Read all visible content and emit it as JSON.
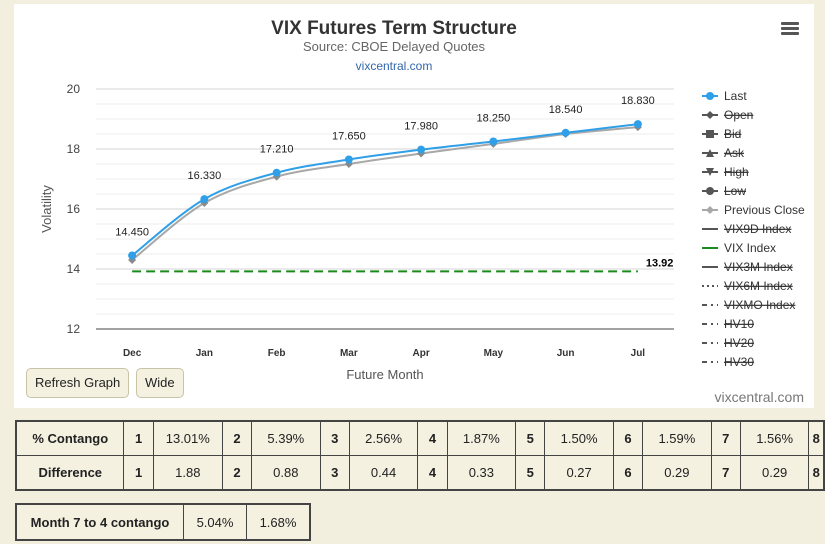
{
  "header": {
    "title": "VIX Futures Term Structure",
    "subtitle": "Source: CBOE Delayed Quotes",
    "site_link": "vixcentral.com"
  },
  "buttons": {
    "refresh": "Refresh Graph",
    "wide": "Wide"
  },
  "watermark": "vixcentral.com",
  "chart_data": {
    "type": "line",
    "categories": [
      "Dec",
      "Jan",
      "Feb",
      "Mar",
      "Apr",
      "May",
      "Jun",
      "Jul"
    ],
    "xlabel": "Future Month",
    "ylabel": "Volatility",
    "ylim": [
      12,
      20
    ],
    "yticks": [
      12,
      14,
      16,
      18,
      20
    ],
    "grid": true,
    "legend_position": "right",
    "series": [
      {
        "name": "Last",
        "values": [
          14.45,
          16.33,
          17.21,
          17.65,
          17.98,
          18.25,
          18.54,
          18.83
        ],
        "color": "#2f9fe8",
        "labels": [
          "14.450",
          "16.330",
          "17.210",
          "17.650",
          "17.980",
          "18.250",
          "18.540",
          "18.830"
        ]
      },
      {
        "name": "Previous Close",
        "values": [
          14.3,
          16.2,
          17.08,
          17.5,
          17.85,
          18.17,
          18.5,
          18.73
        ],
        "color": "#a8a8a8"
      },
      {
        "name": "VIX Index",
        "value": 13.92,
        "label": "13.92",
        "color": "#1a8a1a"
      }
    ],
    "legend": [
      {
        "name": "Last",
        "active": true,
        "marker": "dot",
        "color": "#2f9fe8"
      },
      {
        "name": "Open",
        "active": false,
        "marker": "diamond",
        "color": "#666666"
      },
      {
        "name": "Bid",
        "active": false,
        "marker": "square",
        "color": "#666666"
      },
      {
        "name": "Ask",
        "active": false,
        "marker": "triangle",
        "color": "#666666"
      },
      {
        "name": "High",
        "active": false,
        "marker": "triangle-down",
        "color": "#666666"
      },
      {
        "name": "Low",
        "active": false,
        "marker": "dot",
        "color": "#666666"
      },
      {
        "name": "Previous Close",
        "active": true,
        "marker": "diamond",
        "color": "#a8a8a8"
      },
      {
        "name": "VIX9D Index",
        "active": false,
        "marker": "line",
        "color": "#666666"
      },
      {
        "name": "VIX Index",
        "active": true,
        "marker": "line",
        "color": "#1a8a1a"
      },
      {
        "name": "VIX3M Index",
        "active": false,
        "marker": "line",
        "color": "#666666"
      },
      {
        "name": "VIX6M Index",
        "active": false,
        "marker": "dotted",
        "color": "#666666"
      },
      {
        "name": "VIXMO Index",
        "active": false,
        "marker": "dashdot",
        "color": "#666666"
      },
      {
        "name": "HV10",
        "active": false,
        "marker": "dashdot",
        "color": "#666666"
      },
      {
        "name": "HV20",
        "active": false,
        "marker": "dashdot",
        "color": "#666666"
      },
      {
        "name": "HV30",
        "active": false,
        "marker": "dashdot",
        "color": "#666666"
      }
    ]
  },
  "contango_table": {
    "rows": [
      {
        "label": "% Contango",
        "cells": [
          "1",
          "13.01%",
          "2",
          "5.39%",
          "3",
          "2.56%",
          "4",
          "1.87%",
          "5",
          "1.50%",
          "6",
          "1.59%",
          "7",
          "1.56%",
          "8"
        ]
      },
      {
        "label": "Difference",
        "cells": [
          "1",
          "1.88",
          "2",
          "0.88",
          "3",
          "0.44",
          "4",
          "0.33",
          "5",
          "0.27",
          "6",
          "0.29",
          "7",
          "0.29",
          "8"
        ]
      }
    ]
  },
  "month_table": {
    "label": "Month 7 to 4 contango",
    "value1": "5.04%",
    "value2": "1.68%"
  }
}
